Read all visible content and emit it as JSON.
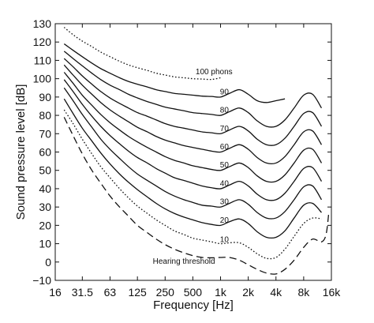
{
  "chart_data": {
    "type": "line",
    "title": "",
    "xlabel": "Frequency [Hz]",
    "ylabel": "Sound pressure level [dB]",
    "x_scale": "log",
    "xlim": [
      16,
      16000
    ],
    "ylim": [
      -10,
      130
    ],
    "grid": false,
    "x_ticks": [
      {
        "value": 16,
        "label": "16"
      },
      {
        "value": 31.5,
        "label": "31.5"
      },
      {
        "value": 63,
        "label": "63"
      },
      {
        "value": 125,
        "label": "125"
      },
      {
        "value": 250,
        "label": "250"
      },
      {
        "value": 500,
        "label": "500"
      },
      {
        "value": 1000,
        "label": "1k"
      },
      {
        "value": 2000,
        "label": "2k"
      },
      {
        "value": 4000,
        "label": "4k"
      },
      {
        "value": 8000,
        "label": "8k"
      },
      {
        "value": 16000,
        "label": "16k"
      }
    ],
    "y_ticks": [
      {
        "value": -10,
        "label": "−10"
      },
      {
        "value": 0,
        "label": "0"
      },
      {
        "value": 10,
        "label": "10"
      },
      {
        "value": 20,
        "label": "20"
      },
      {
        "value": 30,
        "label": "30"
      },
      {
        "value": 40,
        "label": "40"
      },
      {
        "value": 50,
        "label": "50"
      },
      {
        "value": 60,
        "label": "60"
      },
      {
        "value": 70,
        "label": "70"
      },
      {
        "value": 80,
        "label": "80"
      },
      {
        "value": 90,
        "label": "90"
      },
      {
        "value": 100,
        "label": "100"
      },
      {
        "value": 110,
        "label": "110"
      },
      {
        "value": 120,
        "label": "120"
      },
      {
        "value": 130,
        "label": "130"
      }
    ],
    "series": [
      {
        "label": "Hearing threshold",
        "style": "dashed",
        "label_pos": {
          "x": 400,
          "y": -1
        },
        "x": [
          20,
          25,
          31.5,
          40,
          50,
          63,
          80,
          100,
          125,
          160,
          200,
          250,
          315,
          400,
          500,
          630,
          800,
          1000,
          1250,
          1600,
          2000,
          2500,
          3150,
          4000,
          5000,
          6300,
          8000,
          10000,
          12500,
          14000,
          15000
        ],
        "y": [
          79,
          69,
          59,
          50,
          43,
          36,
          30,
          25,
          20,
          16,
          12.5,
          9.5,
          7,
          5,
          3.5,
          2.5,
          2.3,
          2.5,
          2.5,
          1,
          -1.5,
          -4,
          -6,
          -6.5,
          -4,
          1,
          8,
          12.5,
          11,
          15,
          27
        ]
      },
      {
        "label": "10",
        "style": "dotted",
        "label_pos": {
          "x": 1100,
          "y": 11
        },
        "x": [
          20,
          25,
          31.5,
          40,
          50,
          63,
          80,
          100,
          125,
          160,
          200,
          250,
          315,
          400,
          500,
          630,
          800,
          1000,
          1250,
          1600,
          2000,
          2500,
          3150,
          4000,
          5000,
          6300,
          8000,
          10000,
          12500
        ],
        "y": [
          83,
          75.5,
          67,
          59,
          52,
          46,
          40,
          35,
          30.5,
          26.5,
          23,
          20,
          17,
          15,
          13,
          12,
          11,
          10,
          10.5,
          10.5,
          8,
          4.5,
          2,
          2.5,
          7,
          14,
          21,
          24,
          23.5
        ]
      },
      {
        "label": "20",
        "style": "solid",
        "label_pos": {
          "x": 1100,
          "y": 21.5
        },
        "x": [
          20,
          25,
          31.5,
          40,
          50,
          63,
          80,
          100,
          125,
          160,
          200,
          250,
          315,
          400,
          500,
          630,
          800,
          1000,
          1250,
          1600,
          2000,
          2500,
          3150,
          4000,
          5000,
          6300,
          8000,
          10000,
          12500
        ],
        "y": [
          89,
          81,
          73,
          66,
          59.5,
          53.5,
          48,
          43.5,
          39.5,
          35.5,
          32,
          29,
          26.5,
          24.5,
          23,
          21.5,
          20.5,
          20,
          22,
          23.5,
          21,
          16.5,
          13.5,
          13.5,
          17,
          24,
          31,
          32,
          27
        ]
      },
      {
        "label": "30",
        "style": "solid",
        "label_pos": {
          "x": 1100,
          "y": 31.5
        },
        "x": [
          20,
          25,
          31.5,
          40,
          50,
          63,
          80,
          100,
          125,
          160,
          200,
          250,
          315,
          400,
          500,
          630,
          800,
          1000,
          1250,
          1600,
          2000,
          2500,
          3150,
          4000,
          5000,
          6300,
          8000,
          10000,
          12500
        ],
        "y": [
          95,
          88,
          80.5,
          73.5,
          67,
          61.5,
          56.5,
          52,
          48,
          44.5,
          41.5,
          38.5,
          36,
          34,
          32.5,
          31,
          30.5,
          30,
          32,
          34,
          31.5,
          27,
          24,
          24,
          27.5,
          34,
          41,
          41.5,
          34
        ]
      },
      {
        "label": "40",
        "style": "solid",
        "label_pos": {
          "x": 1100,
          "y": 41.5
        },
        "x": [
          20,
          25,
          31.5,
          40,
          50,
          63,
          80,
          100,
          125,
          160,
          200,
          250,
          315,
          400,
          500,
          630,
          800,
          1000,
          1250,
          1600,
          2000,
          2500,
          3150,
          4000,
          5000,
          6300,
          8000,
          10000,
          12500
        ],
        "y": [
          99.5,
          93,
          86,
          79.5,
          74,
          69,
          64.5,
          60.5,
          57,
          54,
          51,
          48.5,
          46,
          44.5,
          43,
          41.5,
          40.5,
          40,
          42,
          44,
          41.5,
          37,
          34,
          34,
          37.5,
          44,
          51,
          51.5,
          44
        ]
      },
      {
        "label": "50",
        "style": "solid",
        "label_pos": {
          "x": 1100,
          "y": 51.5
        },
        "x": [
          20,
          25,
          31.5,
          40,
          50,
          63,
          80,
          100,
          125,
          160,
          200,
          250,
          315,
          400,
          500,
          630,
          800,
          1000,
          1250,
          1600,
          2000,
          2500,
          3150,
          4000,
          5000,
          6300,
          8000,
          10000,
          12500
        ],
        "y": [
          103.5,
          97.5,
          91,
          85.5,
          80.5,
          76,
          72,
          68.5,
          65.5,
          62.5,
          60,
          57.5,
          55.5,
          54,
          52.5,
          51.5,
          50.5,
          50,
          52,
          54,
          51.5,
          47,
          44,
          44,
          47.5,
          54,
          61,
          61.5,
          54
        ]
      },
      {
        "label": "60",
        "style": "solid",
        "label_pos": {
          "x": 1100,
          "y": 61.5
        },
        "x": [
          20,
          25,
          31.5,
          40,
          50,
          63,
          80,
          100,
          125,
          160,
          200,
          250,
          315,
          400,
          500,
          630,
          800,
          1000,
          1250,
          1600,
          2000,
          2500,
          3150,
          4000,
          5000,
          6300,
          8000,
          10000,
          12500
        ],
        "y": [
          107.5,
          102,
          96.5,
          91.5,
          87,
          83,
          79.5,
          76.5,
          73.5,
          71,
          68.5,
          66.5,
          65,
          63.5,
          62.5,
          61.5,
          60.5,
          60,
          62,
          64,
          61.5,
          57,
          54,
          54,
          57.5,
          64,
          71,
          71.5,
          64
        ]
      },
      {
        "label": "70",
        "style": "solid",
        "label_pos": {
          "x": 1100,
          "y": 71.5
        },
        "x": [
          20,
          25,
          31.5,
          40,
          50,
          63,
          80,
          100,
          125,
          160,
          200,
          250,
          315,
          400,
          500,
          630,
          800,
          1000,
          1250,
          1600,
          2000,
          2500,
          3150,
          4000,
          5000,
          6300,
          8000,
          10000,
          12500
        ],
        "y": [
          111,
          106.5,
          101.5,
          97,
          93,
          89.5,
          86.5,
          84,
          81.5,
          79.5,
          77.5,
          75.5,
          74,
          73,
          72,
          71,
          70.5,
          70,
          72,
          74,
          71.5,
          67,
          64,
          64,
          67.5,
          74,
          81,
          81.5,
          74
        ]
      },
      {
        "label": "80",
        "style": "solid",
        "label_pos": {
          "x": 1100,
          "y": 81.5
        },
        "x": [
          20,
          25,
          31.5,
          40,
          50,
          63,
          80,
          100,
          125,
          160,
          200,
          250,
          315,
          400,
          500,
          630,
          800,
          1000,
          1250,
          1600,
          2000,
          2500,
          3150,
          4000,
          5000,
          6300,
          8000,
          10000,
          12500
        ],
        "y": [
          115,
          111,
          107,
          103,
          99.5,
          96.5,
          94,
          91.5,
          89.5,
          87.5,
          86,
          84.5,
          83.5,
          82.5,
          81.5,
          81,
          80.5,
          80,
          82,
          84,
          81.5,
          77,
          74,
          74,
          77.5,
          84,
          91,
          91.5,
          84
        ]
      },
      {
        "label": "90",
        "style": "solid",
        "label_pos": {
          "x": 1100,
          "y": 91.5
        },
        "x": [
          20,
          25,
          31.5,
          40,
          50,
          63,
          80,
          100,
          125,
          160,
          200,
          250,
          315,
          400,
          500,
          630,
          800,
          1000,
          1250,
          1600,
          2000,
          2500,
          3150,
          4000,
          5000
        ],
        "y": [
          119,
          115.5,
          112,
          108.5,
          105.5,
          103,
          100.5,
          98.5,
          97,
          95.5,
          94,
          93,
          92,
          91.5,
          91,
          90.5,
          90.3,
          90,
          92,
          94,
          91.5,
          88,
          87,
          88,
          89
        ]
      },
      {
        "label": "100 phons",
        "style": "dotted",
        "label_pos": {
          "x": 850,
          "y": 102.5
        },
        "x": [
          20,
          25,
          31.5,
          40,
          50,
          63,
          80,
          100,
          125,
          160,
          200,
          250,
          315,
          400,
          500,
          630,
          800,
          1000
        ],
        "y": [
          128,
          124,
          120.5,
          117.5,
          114.5,
          112,
          109.5,
          107.5,
          106,
          104.5,
          103,
          102,
          101,
          100.5,
          100,
          99.8,
          99.6,
          100.5
        ]
      }
    ]
  }
}
